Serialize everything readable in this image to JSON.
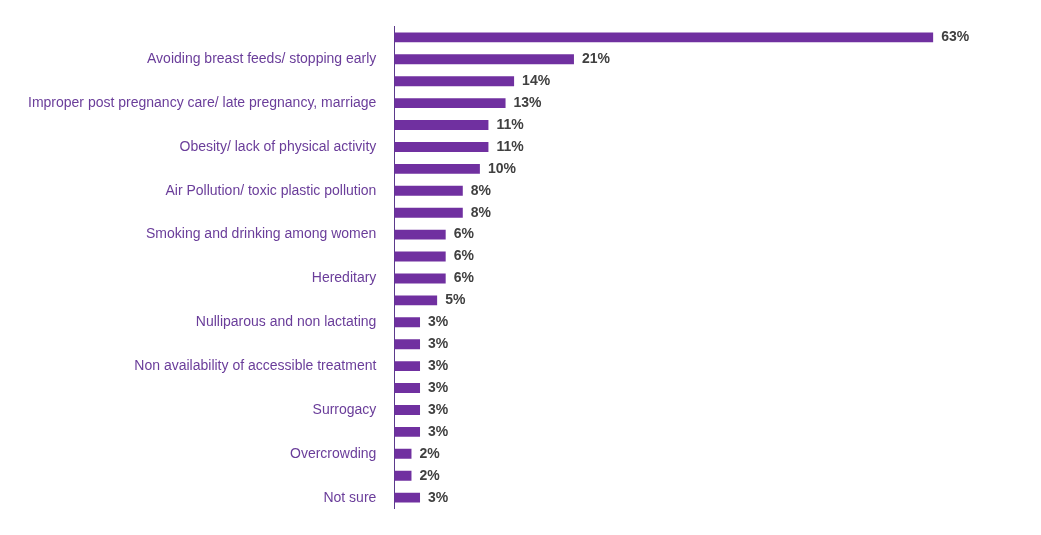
{
  "chart_data": {
    "type": "bar",
    "orientation": "horizontal",
    "categories": [
      null,
      "Avoiding breast feeds/ stopping early",
      null,
      "Improper post pregnancy care/ late pregnancy, marriage",
      null,
      "Obesity/ lack of physical activity",
      null,
      "Air Pollution/ toxic plastic pollution",
      null,
      "Smoking and drinking among women",
      null,
      "Hereditary",
      null,
      "Nulliparous and non lactating",
      null,
      "Non availability of accessible treatment",
      null,
      "Surrogacy",
      null,
      "Overcrowding",
      null,
      "Not sure"
    ],
    "values": [
      63,
      21,
      14,
      13,
      11,
      11,
      10,
      8,
      8,
      6,
      6,
      6,
      5,
      3,
      3,
      3,
      3,
      3,
      3,
      2,
      2,
      3
    ],
    "value_labels": [
      "63%",
      "21%",
      "14%",
      "13%",
      "11%",
      "11%",
      "10%",
      "8%",
      "8%",
      "6%",
      "6%",
      "6%",
      "5%",
      "3%",
      "3%",
      "3%",
      "3%",
      "3%",
      "3%",
      "2%",
      "2%",
      "3%"
    ],
    "color": "#7030a0",
    "tick_labels": "y"
  }
}
